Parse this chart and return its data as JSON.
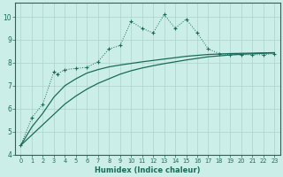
{
  "xlabel": "Humidex (Indice chaleur)",
  "bg_color": "#cceee8",
  "grid_color": "#aad4ce",
  "line_color": "#1a6b5a",
  "xlim": [
    -0.5,
    23.5
  ],
  "ylim": [
    4,
    10.6
  ],
  "xticks": [
    0,
    1,
    2,
    3,
    4,
    5,
    6,
    7,
    8,
    9,
    10,
    11,
    12,
    13,
    14,
    15,
    16,
    17,
    18,
    19,
    20,
    21,
    22,
    23
  ],
  "yticks": [
    4,
    5,
    6,
    7,
    8,
    9,
    10
  ],
  "s1_x": [
    0,
    1,
    2,
    3,
    3.3,
    4,
    5,
    6,
    7,
    8,
    9,
    10,
    11,
    12,
    13,
    14,
    15,
    16,
    17,
    18,
    19,
    20,
    21,
    22,
    23
  ],
  "s1_y": [
    4.4,
    5.6,
    6.2,
    7.6,
    7.5,
    7.7,
    7.75,
    7.8,
    8.05,
    8.6,
    8.75,
    9.8,
    9.5,
    9.3,
    10.1,
    9.5,
    9.9,
    9.3,
    8.6,
    8.4,
    8.35,
    8.35,
    8.35,
    8.35,
    8.4
  ],
  "s2_x": [
    0,
    1,
    2,
    3,
    4,
    5,
    6,
    7,
    8,
    9,
    10,
    11,
    12,
    13,
    14,
    15,
    16,
    17,
    18,
    19,
    20,
    21,
    22,
    23
  ],
  "s2_y": [
    4.4,
    5.2,
    5.8,
    6.5,
    7.0,
    7.3,
    7.55,
    7.7,
    7.82,
    7.9,
    7.97,
    8.04,
    8.1,
    8.16,
    8.22,
    8.28,
    8.32,
    8.36,
    8.38,
    8.4,
    8.41,
    8.42,
    8.43,
    8.44
  ],
  "s3_x": [
    0,
    1,
    2,
    3,
    4,
    5,
    6,
    7,
    8,
    9,
    10,
    11,
    12,
    13,
    14,
    15,
    16,
    17,
    18,
    19,
    20,
    21,
    22,
    23
  ],
  "s3_y": [
    4.4,
    4.85,
    5.3,
    5.75,
    6.2,
    6.55,
    6.85,
    7.1,
    7.3,
    7.5,
    7.65,
    7.77,
    7.87,
    7.96,
    8.04,
    8.12,
    8.19,
    8.26,
    8.3,
    8.34,
    8.37,
    8.39,
    8.41,
    8.43
  ]
}
